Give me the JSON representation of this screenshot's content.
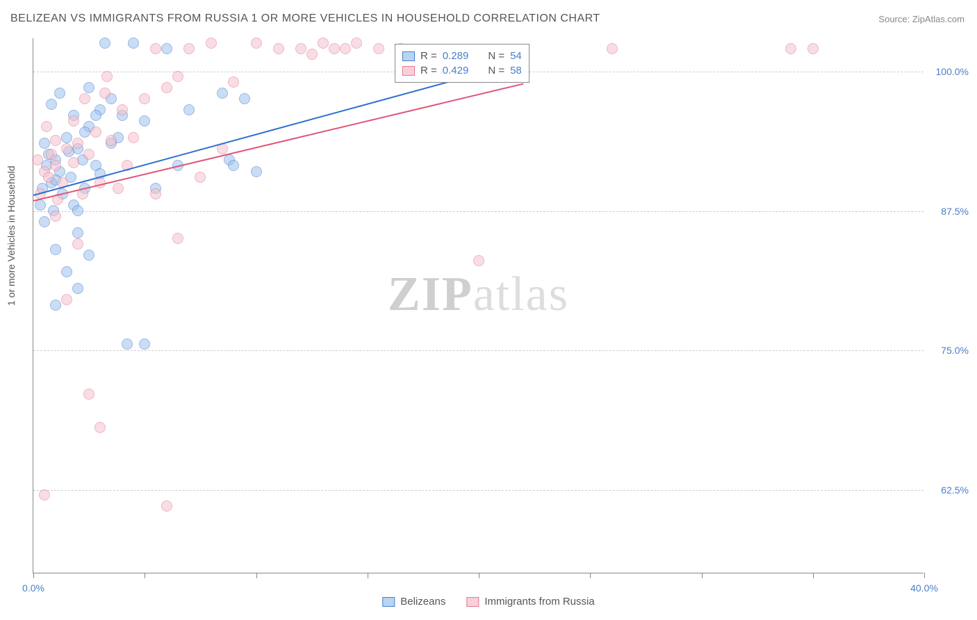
{
  "title": "BELIZEAN VS IMMIGRANTS FROM RUSSIA 1 OR MORE VEHICLES IN HOUSEHOLD CORRELATION CHART",
  "source_label": "Source:",
  "source_name": "ZipAtlas.com",
  "ylabel": "1 or more Vehicles in Household",
  "watermark_bold": "ZIP",
  "watermark_light": "atlas",
  "chart": {
    "type": "scatter",
    "xlim": [
      0,
      40
    ],
    "ylim": [
      55,
      103
    ],
    "x_ticks": [
      0,
      5,
      10,
      15,
      20,
      25,
      30,
      35,
      40
    ],
    "x_tick_labels": {
      "0": "0.0%",
      "40": "40.0%"
    },
    "y_gridlines": [
      62.5,
      75,
      87.5,
      100
    ],
    "y_tick_labels": [
      "62.5%",
      "75.0%",
      "87.5%",
      "100.0%"
    ],
    "background_color": "#ffffff",
    "grid_color": "#cccccc",
    "axis_color": "#888888",
    "tick_label_color": "#4a7ec9",
    "point_radius": 8,
    "point_opacity": 0.55,
    "series": [
      {
        "name": "Belizeans",
        "fill": "#9ec3ef",
        "stroke": "#4a7ec9",
        "legend_fill": "#b8d4f0",
        "R": "0.289",
        "N": "54",
        "trend": {
          "x1": 0,
          "y1": 89.0,
          "x2": 22,
          "y2": 101.0,
          "color": "#2e6fd1"
        },
        "points": [
          [
            0.3,
            88.0
          ],
          [
            0.4,
            89.5
          ],
          [
            0.7,
            92.5
          ],
          [
            0.8,
            90.0
          ],
          [
            0.9,
            87.5
          ],
          [
            0.5,
            86.5
          ],
          [
            1.0,
            92.0
          ],
          [
            1.2,
            91.0
          ],
          [
            1.5,
            94.0
          ],
          [
            1.0,
            84.0
          ],
          [
            1.3,
            89.0
          ],
          [
            1.7,
            90.5
          ],
          [
            2.0,
            93.0
          ],
          [
            1.8,
            88.0
          ],
          [
            2.2,
            92.0
          ],
          [
            2.5,
            95.0
          ],
          [
            2.3,
            89.5
          ],
          [
            2.8,
            91.5
          ],
          [
            3.0,
            96.5
          ],
          [
            2.0,
            85.5
          ],
          [
            1.5,
            82.0
          ],
          [
            2.0,
            80.5
          ],
          [
            1.0,
            79.0
          ],
          [
            0.5,
            93.5
          ],
          [
            3.2,
            102.5
          ],
          [
            3.8,
            94.0
          ],
          [
            4.0,
            96.0
          ],
          [
            4.5,
            102.5
          ],
          [
            5.0,
            95.5
          ],
          [
            5.5,
            89.5
          ],
          [
            4.2,
            75.5
          ],
          [
            5.0,
            75.5
          ],
          [
            2.5,
            83.5
          ],
          [
            6.0,
            102.0
          ],
          [
            6.5,
            91.5
          ],
          [
            7.0,
            96.5
          ],
          [
            8.5,
            98.0
          ],
          [
            8.8,
            92.0
          ],
          [
            3.5,
            93.5
          ],
          [
            9.5,
            97.5
          ],
          [
            9.0,
            91.5
          ],
          [
            10.0,
            91.0
          ],
          [
            0.8,
            97.0
          ],
          [
            1.2,
            98.0
          ],
          [
            3.0,
            90.8
          ],
          [
            3.5,
            97.5
          ],
          [
            2.5,
            98.5
          ],
          [
            1.8,
            96.0
          ],
          [
            2.3,
            94.5
          ],
          [
            0.6,
            91.5
          ],
          [
            1.0,
            90.2
          ],
          [
            1.6,
            92.8
          ],
          [
            2.0,
            87.5
          ],
          [
            2.8,
            96.0
          ]
        ]
      },
      {
        "name": "Immigrants from Russia",
        "fill": "#f4c2ce",
        "stroke": "#e7788f",
        "legend_fill": "#f7d0da",
        "R": "0.429",
        "N": "58",
        "trend": {
          "x1": 0,
          "y1": 88.5,
          "x2": 22,
          "y2": 99.0,
          "color": "#e05577"
        },
        "points": [
          [
            0.2,
            92.0
          ],
          [
            0.3,
            89.0
          ],
          [
            0.5,
            91.0
          ],
          [
            0.8,
            92.5
          ],
          [
            1.0,
            91.5
          ],
          [
            1.1,
            88.5
          ],
          [
            1.3,
            90.0
          ],
          [
            1.5,
            93.0
          ],
          [
            1.0,
            87.0
          ],
          [
            0.6,
            95.0
          ],
          [
            1.8,
            91.8
          ],
          [
            2.0,
            93.5
          ],
          [
            2.2,
            89.0
          ],
          [
            2.5,
            92.5
          ],
          [
            2.8,
            94.5
          ],
          [
            3.0,
            90.0
          ],
          [
            0.5,
            62.0
          ],
          [
            3.5,
            93.8
          ],
          [
            1.5,
            79.5
          ],
          [
            2.0,
            84.5
          ],
          [
            4.0,
            96.5
          ],
          [
            4.5,
            94.0
          ],
          [
            5.0,
            97.5
          ],
          [
            5.5,
            102.0
          ],
          [
            5.5,
            89.0
          ],
          [
            6.0,
            98.5
          ],
          [
            6.5,
            99.5
          ],
          [
            7.0,
            102.0
          ],
          [
            2.5,
            71.0
          ],
          [
            3.0,
            68.0
          ],
          [
            7.5,
            90.5
          ],
          [
            8.0,
            102.5
          ],
          [
            8.5,
            93.0
          ],
          [
            9.0,
            99.0
          ],
          [
            6.5,
            85.0
          ],
          [
            6.0,
            61.0
          ],
          [
            10.0,
            102.5
          ],
          [
            11.0,
            102.0
          ],
          [
            12.0,
            102.0
          ],
          [
            12.5,
            101.5
          ],
          [
            13.0,
            102.5
          ],
          [
            13.5,
            102.0
          ],
          [
            14.0,
            102.0
          ],
          [
            14.5,
            102.5
          ],
          [
            15.5,
            102.0
          ],
          [
            16.5,
            102.0
          ],
          [
            20.0,
            83.0
          ],
          [
            26.0,
            102.0
          ],
          [
            34.0,
            102.0
          ],
          [
            35.0,
            102.0
          ],
          [
            2.3,
            97.5
          ],
          [
            3.2,
            98.0
          ],
          [
            3.3,
            99.5
          ],
          [
            3.8,
            89.5
          ],
          [
            4.2,
            91.5
          ],
          [
            1.8,
            95.5
          ],
          [
            1.0,
            93.8
          ],
          [
            0.7,
            90.5
          ]
        ]
      }
    ]
  },
  "stats_box": {
    "r_label": "R =",
    "n_label": "N ="
  },
  "bottom_legend": {
    "items": [
      "Belizeans",
      "Immigrants from Russia"
    ]
  }
}
